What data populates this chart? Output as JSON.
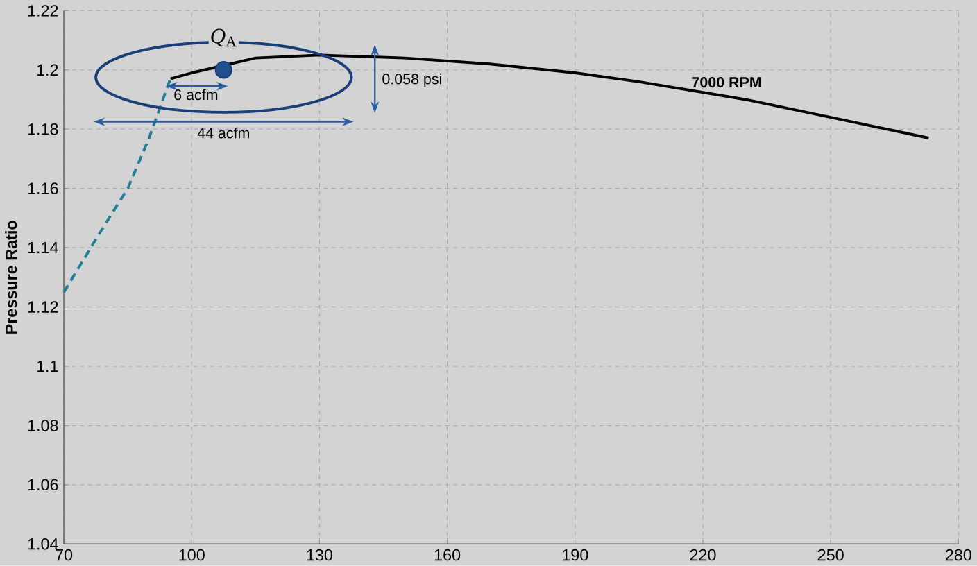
{
  "chart_data": {
    "type": "line",
    "ylabel": "Pressure Ratio",
    "xlim": [
      70,
      280
    ],
    "xticks": [
      70,
      100,
      130,
      160,
      190,
      220,
      250,
      280
    ],
    "ylim": [
      1.04,
      1.22
    ],
    "yticks": [
      1.04,
      1.06,
      1.08,
      1.1,
      1.12,
      1.14,
      1.16,
      1.18,
      1.2,
      1.22
    ],
    "grid": true,
    "legend": false,
    "series": [
      {
        "name": "7000 RPM",
        "color": "#000000",
        "line_style": "solid",
        "x": [
          95,
          100,
          115,
          130,
          150,
          170,
          190,
          205,
          230,
          250,
          273
        ],
        "values": [
          1.197,
          1.199,
          1.204,
          1.205,
          1.204,
          1.202,
          1.199,
          1.196,
          1.19,
          1.184,
          1.177
        ]
      },
      {
        "color": "#1f7f99",
        "line_style": "dashed",
        "x": [
          70,
          78,
          85,
          90,
          95
        ],
        "values": [
          1.125,
          1.144,
          1.16,
          1.177,
          1.197
        ]
      },
      {
        "type": "scatter",
        "color": "#1f4e8c",
        "x": [
          107.5
        ],
        "values": [
          1.2
        ]
      }
    ],
    "annotations": [
      {
        "text": "*Q*$_{A}$",
        "x": 107.5,
        "y": 1.2
      },
      "6 acfm",
      "44 acfm",
      "0.058 psi"
    ]
  }
}
